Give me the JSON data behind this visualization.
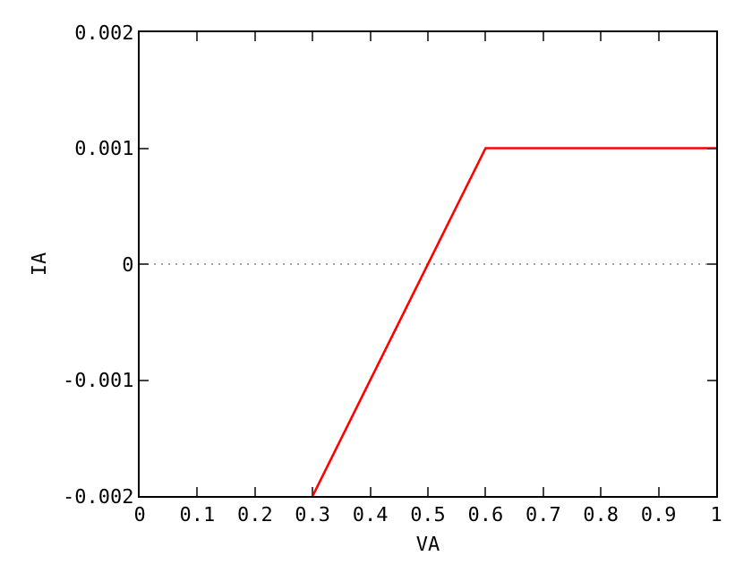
{
  "chart_data": {
    "type": "line",
    "xlabel": "VA",
    "ylabel": "IA",
    "x": [
      0.3,
      0.6,
      1
    ],
    "series": [
      {
        "color": "#ff0000",
        "values": [
          -0.002,
          0.001,
          0.001
        ]
      }
    ],
    "xlim": [
      0,
      1
    ],
    "xticks": [
      0,
      0.1,
      0.2,
      0.3,
      0.4,
      0.5,
      0.6,
      0.7,
      0.8,
      0.9,
      1
    ],
    "ylim": [
      -0.002,
      0.002
    ],
    "yticks": [
      -0.002,
      -0.001,
      0,
      0.001,
      0.002
    ],
    "ref_lines": [
      {
        "axis": "y",
        "value": 0,
        "color": "#a0a0a0",
        "line_style": "dotted"
      }
    ],
    "grid": false,
    "marker": "none",
    "line_style": "solid"
  }
}
